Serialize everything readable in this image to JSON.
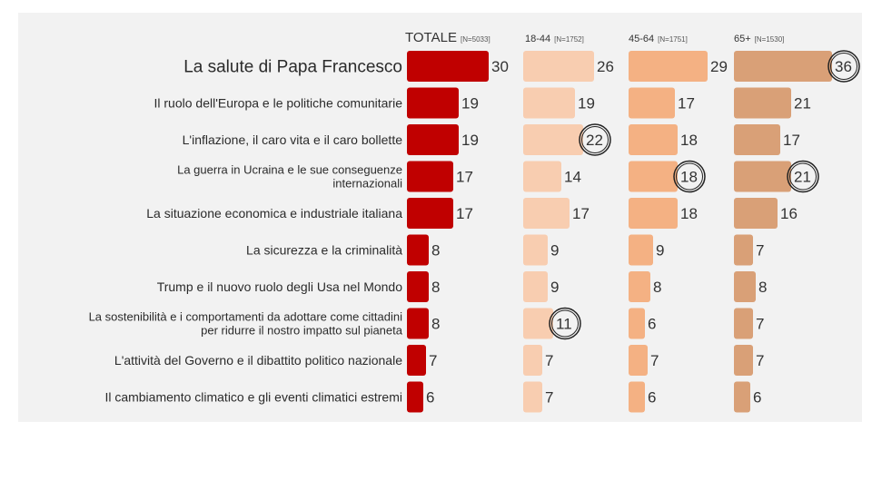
{
  "chart_data": {
    "type": "bar",
    "orientation": "horizontal",
    "categories": [
      "La salute di Papa Francesco",
      "Il ruolo dell'Europa e le politiche comunitarie",
      "L'inflazione, il caro vita e il caro bollette",
      "La guerra in Ucraina e le sue conseguenze internazionali",
      "La situazione economica e industriale italiana",
      "La sicurezza e la criminalità",
      "Trump e il nuovo ruolo degli Usa nel Mondo",
      "La sostenibilità e i comportamenti da adottare come cittadini per ridurre il nostro impatto sul pianeta",
      "L'attività del Governo e il dibattito politico nazionale",
      "Il cambiamento climatico e gli eventi climatici estremi"
    ],
    "category_lines": [
      [
        "La salute di Papa Francesco"
      ],
      [
        "Il ruolo dell'Europa e le politiche comunitarie"
      ],
      [
        "L'inflazione, il caro vita e il caro bollette"
      ],
      [
        "La guerra in Ucraina e le sue conseguenze",
        "internazionali"
      ],
      [
        "La situazione economica e industriale italiana"
      ],
      [
        "La sicurezza e la criminalità"
      ],
      [
        "Trump e il nuovo ruolo degli Usa nel Mondo"
      ],
      [
        "La sostenibilità e i comportamenti da adottare come cittadini",
        "per ridurre il nostro impatto sul pianeta"
      ],
      [
        "L'attività del Governo e il dibattito politico nazionale"
      ],
      [
        "Il cambiamento climatico e gli eventi climatici estremi"
      ]
    ],
    "series": [
      {
        "name": "TOTALE",
        "n_label": "[N=5033]",
        "color": "#c00000",
        "values": [
          30,
          19,
          19,
          17,
          17,
          8,
          8,
          8,
          7,
          6
        ],
        "circled": []
      },
      {
        "name": "18-44",
        "n_label": "[N=1752]",
        "color": "#f8cdb0",
        "values": [
          26,
          19,
          22,
          14,
          17,
          9,
          9,
          11,
          7,
          7
        ],
        "circled": [
          2,
          7
        ]
      },
      {
        "name": "45-64",
        "n_label": "[N=1751]",
        "color": "#f4b183",
        "values": [
          29,
          17,
          18,
          18,
          18,
          9,
          8,
          6,
          7,
          6
        ],
        "circled": [
          3
        ]
      },
      {
        "name": "65+",
        "n_label": "[N=1530]",
        "color": "#d9a077",
        "values": [
          36,
          21,
          17,
          21,
          16,
          7,
          8,
          7,
          7,
          6
        ],
        "circled": [
          0,
          3
        ]
      }
    ],
    "highlight_category": 0,
    "background": "#f2f2f2"
  }
}
